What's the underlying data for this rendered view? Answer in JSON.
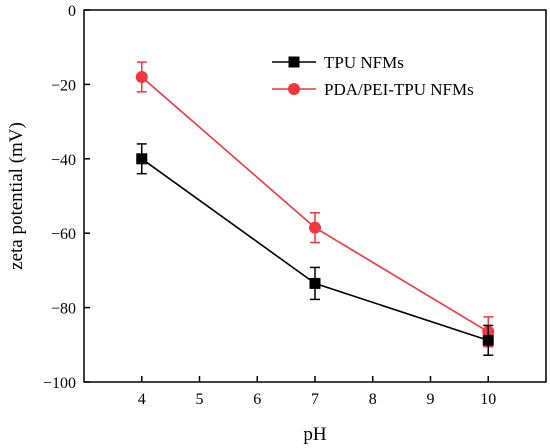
{
  "chart_data": {
    "type": "line",
    "title": "",
    "xlabel": "pH",
    "ylabel": "zeta potential (mV)",
    "xlim": [
      3,
      11
    ],
    "ylim": [
      -100,
      0
    ],
    "x_ticks": [
      4,
      5,
      6,
      7,
      8,
      9,
      10
    ],
    "y_ticks": [
      0,
      -20,
      -40,
      -60,
      -80,
      -100
    ],
    "x_tick_labels": [
      "4",
      "5",
      "6",
      "7",
      "8",
      "9",
      "10"
    ],
    "y_tick_labels": [
      "0",
      "−20",
      "−40",
      "−60",
      "−80",
      "−100"
    ],
    "legend_position": "top-right",
    "grid": false,
    "series": [
      {
        "name": "TPU NFMs",
        "color": "#000000",
        "marker": "square",
        "x": [
          4,
          7,
          10
        ],
        "y": [
          -40,
          -73.5,
          -88.8
        ],
        "error": [
          4,
          4.3,
          4
        ]
      },
      {
        "name": "PDA/PEI-TPU NFMs",
        "color": "#f2373d",
        "marker": "circle",
        "x": [
          4,
          7,
          10
        ],
        "y": [
          -18,
          -58.5,
          -86.5
        ],
        "error": [
          4,
          4,
          4
        ]
      }
    ]
  }
}
